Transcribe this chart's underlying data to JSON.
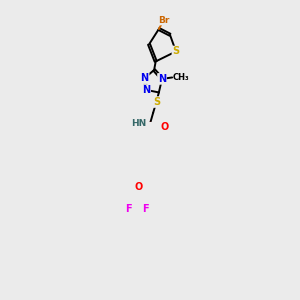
{
  "background_color": "#ebebeb",
  "figsize": [
    3.0,
    3.0
  ],
  "dpi": 100,
  "atom_colors": {
    "C": "#000000",
    "N": "#0000ee",
    "S": "#ccaa00",
    "O": "#ff0000",
    "F": "#ee00ee",
    "Br": "#cc6600",
    "H": "#336666"
  },
  "bond_color": "#000000",
  "bond_width": 1.4,
  "font_size": 7.0
}
